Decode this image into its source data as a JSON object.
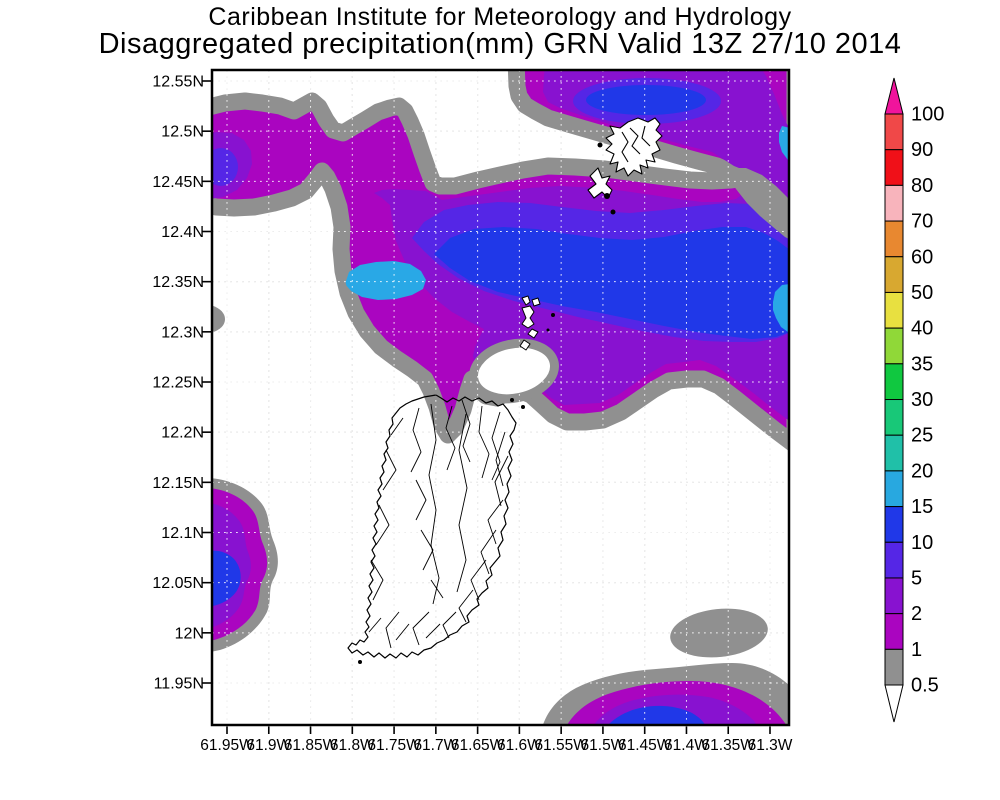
{
  "title": {
    "line1": "Caribbean Institute for Meteorology and Hydrology",
    "line2": "Disaggregated precipitation(mm) GRN Valid 13Z 27/10 2014"
  },
  "axes": {
    "lat_labels": [
      "12.55N",
      "12.5N",
      "12.45N",
      "12.4N",
      "12.35N",
      "12.3N",
      "12.25N",
      "12.2N",
      "12.15N",
      "12.1N",
      "12.05N",
      "12N",
      "11.95N"
    ],
    "lon_labels": [
      "61.95W",
      "61.9W",
      "61.85W",
      "61.8W",
      "61.75W",
      "61.7W",
      "61.65W",
      "61.6W",
      "61.55W",
      "61.5W",
      "61.45W",
      "61.4W",
      "61.35W",
      "61.3W"
    ]
  },
  "colorbar": {
    "labels": [
      "100",
      "90",
      "80",
      "70",
      "60",
      "50",
      "40",
      "35",
      "30",
      "25",
      "20",
      "15",
      "10",
      "5",
      "2",
      "1",
      "0.5"
    ],
    "box_colors_top_to_bottom": [
      "#f04848",
      "#f01018",
      "#f8b4bc",
      "#e88830",
      "#d8a830",
      "#e8e040",
      "#90d838",
      "#10c840",
      "#18c878",
      "#20c0a8",
      "#28a8e0",
      "#2038e8",
      "#5526e6",
      "#8812d0",
      "#aa05c0",
      "#909090"
    ],
    "arrow_top_color": "#f0149c",
    "arrow_bottom_color": "#ffffff"
  },
  "map_colors": {
    "gray": "#909090",
    "magenta": "#aa05c0",
    "purple": "#8812d0",
    "blue_violet": "#5526e6",
    "blue": "#2038e8",
    "cyan": "#29a8e6",
    "coastline": "#000000",
    "grid_under": "#b0b0b0",
    "grid_over": "rgba(255,255,255,0.85)"
  },
  "chart_data": {
    "type": "heatmap",
    "title": "Disaggregated precipitation(mm) GRN Valid 13Z 27/10 2014",
    "units": "mm",
    "legend_levels": [
      0.5,
      1,
      2,
      5,
      10,
      15,
      20,
      25,
      30,
      35,
      40,
      50,
      60,
      70,
      80,
      90,
      100
    ],
    "lat_ticks": [
      12.55,
      12.5,
      12.45,
      12.4,
      12.35,
      12.3,
      12.25,
      12.2,
      12.15,
      12.1,
      12.05,
      12.0,
      11.95
    ],
    "lon_ticks": [
      61.95,
      61.9,
      61.85,
      61.8,
      61.75,
      61.7,
      61.65,
      61.6,
      61.55,
      61.5,
      61.45,
      61.4,
      61.35,
      61.3
    ],
    "grid": true,
    "legend_position": "right"
  }
}
